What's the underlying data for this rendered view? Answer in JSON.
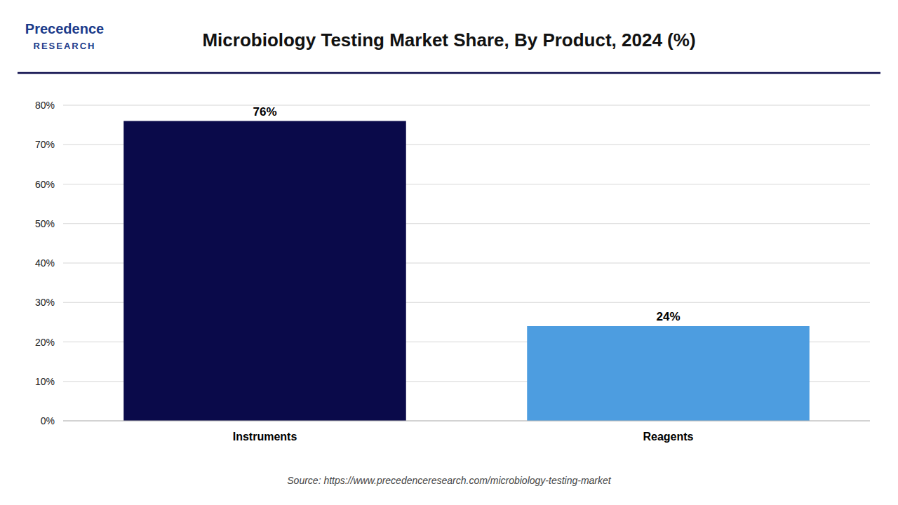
{
  "chart_data": {
    "type": "bar",
    "title": "Microbiology Testing Market Share, By Product, 2024 (%)",
    "categories": [
      "Instruments",
      "Reagents"
    ],
    "values": [
      76,
      24
    ],
    "value_labels": [
      "76%",
      "24%"
    ],
    "colors": [
      "#0a0a4a",
      "#4d9de0"
    ],
    "ylim": [
      0,
      80
    ],
    "yticks": [
      {
        "value": 0,
        "label": "0%"
      },
      {
        "value": 10,
        "label": "10%"
      },
      {
        "value": 20,
        "label": "20%"
      },
      {
        "value": 30,
        "label": "30%"
      },
      {
        "value": 40,
        "label": "40%"
      },
      {
        "value": 50,
        "label": "50%"
      },
      {
        "value": 60,
        "label": "60%"
      },
      {
        "value": 70,
        "label": "70%"
      },
      {
        "value": 80,
        "label": "80%"
      }
    ],
    "grid": true,
    "data_labels": true,
    "annotations": [
      "Precedence",
      "RESEARCH",
      "Source: https://www.precedenceresearch.com/microbiology-testing-market"
    ]
  }
}
